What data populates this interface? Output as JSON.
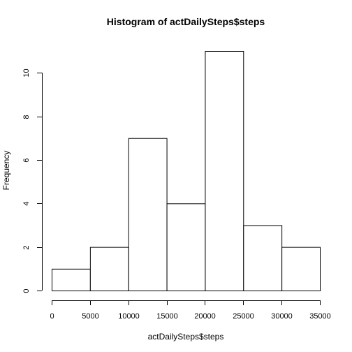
{
  "chart_data": {
    "type": "bar",
    "title": "Histogram of actDailySteps$steps",
    "xlabel": "actDailySteps$steps",
    "ylabel": "Frequency",
    "bins": [
      {
        "from": 0,
        "to": 5000,
        "count": 1
      },
      {
        "from": 5000,
        "to": 10000,
        "count": 2
      },
      {
        "from": 10000,
        "to": 15000,
        "count": 7
      },
      {
        "from": 15000,
        "to": 20000,
        "count": 4
      },
      {
        "from": 20000,
        "to": 25000,
        "count": 11
      },
      {
        "from": 25000,
        "to": 30000,
        "count": 3
      },
      {
        "from": 30000,
        "to": 35000,
        "count": 2
      }
    ],
    "xlim": [
      0,
      35000
    ],
    "ylim": [
      0,
      11
    ],
    "xticks": [
      0,
      5000,
      10000,
      15000,
      20000,
      25000,
      30000,
      35000
    ],
    "yticks": [
      0,
      2,
      4,
      6,
      8,
      10
    ],
    "xtick_labels": [
      "0",
      "5000",
      "10000",
      "15000",
      "20000",
      "25000",
      "30000",
      "35000"
    ],
    "ytick_labels": [
      "0",
      "2",
      "4",
      "6",
      "8",
      "10"
    ],
    "grid": false
  }
}
